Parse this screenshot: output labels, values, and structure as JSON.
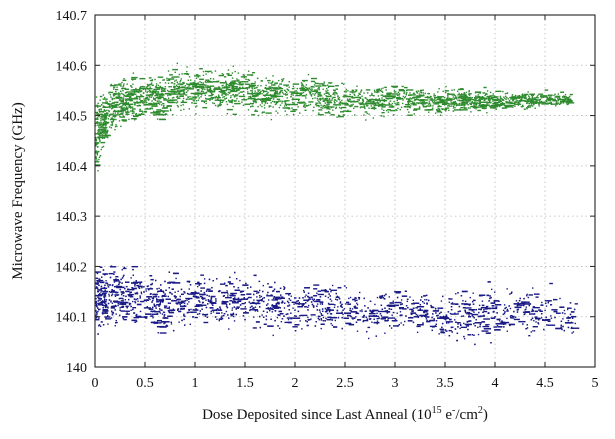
{
  "chart_data": {
    "type": "scatter",
    "title": "",
    "xlabel_main": "Dose Deposited since Last Anneal (10",
    "xlabel_sup1": "15",
    "xlabel_mid": " e",
    "xlabel_sup2": "-",
    "xlabel_unit": "/cm",
    "xlabel_sup3": "2",
    "xlabel_end": ")",
    "ylabel": "Microwave Frequency (GHz)",
    "xlim": [
      0,
      5
    ],
    "ylim": [
      140.0,
      140.7
    ],
    "grid": true,
    "xticks": [
      0,
      0.5,
      1,
      1.5,
      2,
      2.5,
      3,
      3.5,
      4,
      4.5,
      5
    ],
    "xtick_labels": [
      "0",
      "0.5",
      "1",
      "1.5",
      "2",
      "2.5",
      "3",
      "3.5",
      "4",
      "4.5",
      "5"
    ],
    "yticks": [
      140.0,
      140.1,
      140.2,
      140.3,
      140.4,
      140.5,
      140.6,
      140.7
    ],
    "ytick_labels": [
      "140",
      "140.1",
      "140.2",
      "140.3",
      "140.4",
      "140.5",
      "140.6",
      "140.7"
    ],
    "series": [
      {
        "color": "#2e8b2e",
        "x": [
          0.0,
          0.02,
          0.05,
          0.1,
          0.15,
          0.2,
          0.25,
          0.3,
          0.4,
          0.5,
          0.6,
          0.7,
          0.8,
          0.9,
          1.0,
          1.1,
          1.2,
          1.3,
          1.4,
          1.5,
          1.6,
          1.7,
          1.8,
          1.9,
          2.0,
          2.2,
          2.4,
          2.6,
          2.8,
          3.0,
          3.2,
          3.4,
          3.6,
          3.8,
          4.0,
          4.2,
          4.4,
          4.6,
          4.75
        ],
        "y": [
          140.46,
          140.47,
          140.48,
          140.5,
          140.51,
          140.52,
          140.52,
          140.53,
          140.53,
          140.54,
          140.54,
          140.54,
          140.55,
          140.55,
          140.55,
          140.55,
          140.55,
          140.55,
          140.55,
          140.55,
          140.54,
          140.54,
          140.54,
          140.54,
          140.54,
          140.54,
          140.53,
          140.53,
          140.53,
          140.53,
          140.53,
          140.53,
          140.53,
          140.53,
          140.53,
          140.53,
          140.53,
          140.53,
          140.53
        ],
        "spread": [
          0.06,
          0.055,
          0.05,
          0.045,
          0.042,
          0.04,
          0.04,
          0.038,
          0.036,
          0.035,
          0.034,
          0.034,
          0.034,
          0.034,
          0.034,
          0.034,
          0.034,
          0.034,
          0.033,
          0.033,
          0.032,
          0.032,
          0.031,
          0.03,
          0.03,
          0.028,
          0.027,
          0.026,
          0.025,
          0.024,
          0.022,
          0.021,
          0.02,
          0.018,
          0.016,
          0.015,
          0.014,
          0.012,
          0.01
        ]
      },
      {
        "color": "#1a1a85",
        "x": [
          0.0,
          0.05,
          0.1,
          0.2,
          0.3,
          0.4,
          0.5,
          0.6,
          0.7,
          0.8,
          0.9,
          1.0,
          1.2,
          1.4,
          1.6,
          1.8,
          2.0,
          2.2,
          2.4,
          2.6,
          2.8,
          3.0,
          3.2,
          3.4,
          3.5,
          3.6,
          3.8,
          4.0,
          4.2,
          4.4,
          4.6,
          4.8
        ],
        "y": [
          140.14,
          140.14,
          140.14,
          140.14,
          140.14,
          140.14,
          140.14,
          140.13,
          140.13,
          140.13,
          140.13,
          140.13,
          140.13,
          140.13,
          140.13,
          140.12,
          140.12,
          140.12,
          140.12,
          140.11,
          140.11,
          140.11,
          140.11,
          140.11,
          140.1,
          140.1,
          140.1,
          140.11,
          140.11,
          140.11,
          140.1,
          140.09
        ],
        "spread": [
          0.05,
          0.05,
          0.05,
          0.05,
          0.048,
          0.048,
          0.046,
          0.045,
          0.044,
          0.043,
          0.042,
          0.042,
          0.04,
          0.04,
          0.04,
          0.038,
          0.038,
          0.036,
          0.036,
          0.035,
          0.035,
          0.034,
          0.034,
          0.034,
          0.033,
          0.045,
          0.045,
          0.04,
          0.04,
          0.04,
          0.04,
          0.03
        ]
      }
    ]
  }
}
